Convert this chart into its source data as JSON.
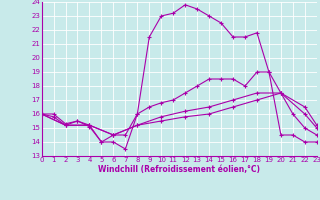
{
  "xlabel": "Windchill (Refroidissement éolien,°C)",
  "bg_color": "#c8eaea",
  "grid_color": "#ffffff",
  "line_color": "#aa00aa",
  "xmin": 0,
  "xmax": 23,
  "ymin": 13,
  "ymax": 24,
  "line1_x": [
    0,
    1,
    2,
    3,
    4,
    5,
    6,
    7,
    8,
    9,
    10,
    11,
    12,
    13,
    14,
    15,
    16,
    17,
    18,
    19,
    20,
    21,
    22,
    23
  ],
  "line1_y": [
    16,
    16,
    15.3,
    15.5,
    15.1,
    14.0,
    14.0,
    13.5,
    16.0,
    21.5,
    23.0,
    23.2,
    23.8,
    23.5,
    23.0,
    22.5,
    21.5,
    21.5,
    21.8,
    19.0,
    17.5,
    16.0,
    15.0,
    14.5
  ],
  "line2_x": [
    0,
    1,
    2,
    3,
    4,
    5,
    6,
    7,
    8,
    9,
    10,
    11,
    12,
    13,
    14,
    15,
    16,
    17,
    18,
    19,
    20,
    21,
    22,
    23
  ],
  "line2_y": [
    16,
    15.8,
    15.2,
    15.5,
    15.2,
    14.0,
    14.5,
    14.5,
    16.0,
    16.5,
    16.8,
    17.0,
    17.5,
    18.0,
    18.5,
    18.5,
    18.5,
    18.0,
    19.0,
    19.0,
    14.5,
    14.5,
    14.0,
    14.0
  ],
  "line3_x": [
    0,
    2,
    4,
    6,
    8,
    10,
    12,
    14,
    16,
    18,
    20,
    22,
    23
  ],
  "line3_y": [
    16,
    15.2,
    15.2,
    14.5,
    15.2,
    15.5,
    15.8,
    16.0,
    16.5,
    17.0,
    17.5,
    16.0,
    15.0
  ],
  "line4_x": [
    0,
    2,
    4,
    6,
    8,
    10,
    12,
    14,
    16,
    18,
    20,
    22,
    23
  ],
  "line4_y": [
    16,
    15.2,
    15.2,
    14.5,
    15.2,
    15.8,
    16.2,
    16.5,
    17.0,
    17.5,
    17.5,
    16.5,
    15.2
  ],
  "tick_fontsize": 5,
  "xlabel_fontsize": 5.5
}
